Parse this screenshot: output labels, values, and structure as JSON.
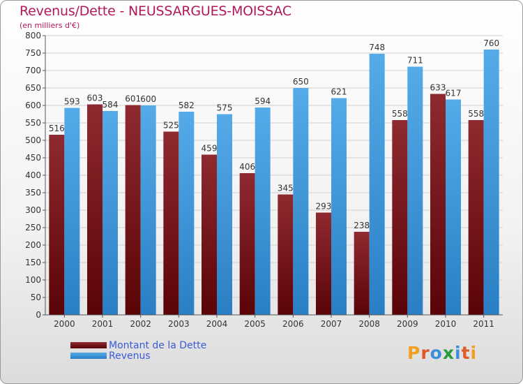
{
  "header": {
    "title": "Revenus/Dette - NEUSSARGUES-MOISSAC",
    "subtitle": "(en milliers d'€)"
  },
  "colors": {
    "title": "#b0185a",
    "dette": "#7a1820",
    "revenus": "#3a97dc",
    "legend_text": "#3b5bd6"
  },
  "legend": [
    {
      "label": "Montant de la Dette",
      "color": "#7a1820"
    },
    {
      "label": "Revenus",
      "color": "#3a97dc"
    }
  ],
  "logo": {
    "text": "Proxiti",
    "letter_colors": [
      "#f0a020",
      "#e0582a",
      "#3a8fd8",
      "#2a9a3a",
      "#3a8fd8",
      "#e05a2a",
      "#f0a020"
    ]
  },
  "chart_data": {
    "type": "bar",
    "categories": [
      "2000",
      "2001",
      "2002",
      "2003",
      "2004",
      "2005",
      "2006",
      "2007",
      "2008",
      "2009",
      "2010",
      "2011"
    ],
    "series": [
      {
        "name": "Montant de la Dette",
        "values": [
          516,
          603,
          601,
          525,
          459,
          406,
          345,
          293,
          238,
          558,
          633,
          558
        ]
      },
      {
        "name": "Revenus",
        "values": [
          593,
          584,
          600,
          582,
          575,
          594,
          650,
          621,
          748,
          711,
          617,
          760
        ]
      }
    ],
    "ylim": [
      0,
      800
    ],
    "yticks": [
      0,
      50,
      100,
      150,
      200,
      250,
      300,
      350,
      400,
      450,
      500,
      550,
      600,
      650,
      700,
      750,
      800
    ],
    "grid": true,
    "legend_position": "bottom-left"
  }
}
